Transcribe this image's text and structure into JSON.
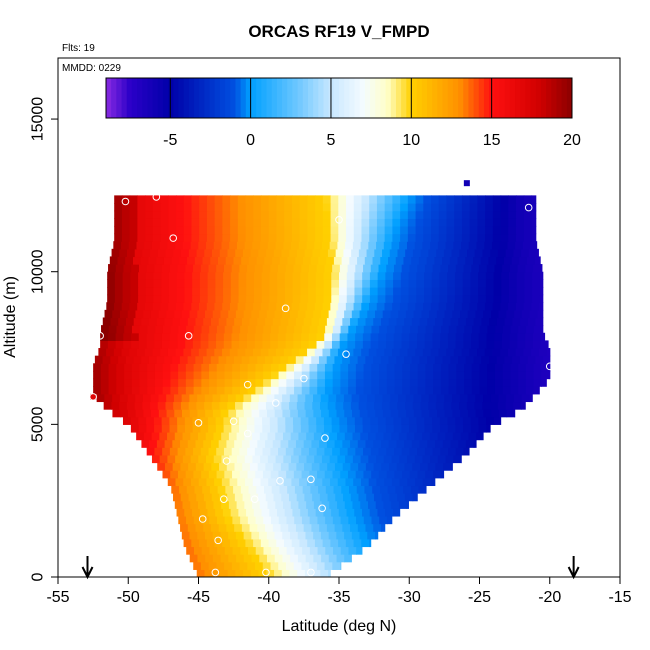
{
  "chart_data": {
    "type": "heatmap",
    "title": "ORCAS RF19 V_FMPD",
    "annotations": [
      "Flts: 19",
      "MMDD: 0229"
    ],
    "xlabel": "Latitude (deg N)",
    "ylabel": "Altitude (m)",
    "xlim": [
      -55,
      -15
    ],
    "ylim": [
      0,
      17000
    ],
    "x_ticks": [
      -55,
      -50,
      -45,
      -40,
      -35,
      -30,
      -25,
      -20,
      -15
    ],
    "x_tick_labels": [
      "-55",
      "-50",
      "-45",
      "-40",
      "-35",
      "-30",
      "-25",
      "-20",
      "-15"
    ],
    "y_ticks": [
      0,
      5000,
      10000,
      15000
    ],
    "y_tick_labels": [
      "0",
      "5000",
      "10000",
      "15000"
    ],
    "colorbar": {
      "range": [
        -9,
        20
      ],
      "ticks": [
        -5,
        0,
        5,
        10,
        15,
        20
      ],
      "tick_labels": [
        "-5",
        "0",
        "5",
        "10",
        "15",
        "20"
      ],
      "stops": [
        {
          "v": -9,
          "c": "#8a2be2"
        },
        {
          "v": -7.5,
          "c": "#2b00c8"
        },
        {
          "v": -5,
          "c": "#0000a8"
        },
        {
          "v": -1,
          "c": "#0050e0"
        },
        {
          "v": 0,
          "c": "#00a0ff"
        },
        {
          "v": 3,
          "c": "#70c8ff"
        },
        {
          "v": 5,
          "c": "#c8e8ff"
        },
        {
          "v": 7,
          "c": "#f4fbff"
        },
        {
          "v": 8.5,
          "c": "#ffffc8"
        },
        {
          "v": 10,
          "c": "#ffd000"
        },
        {
          "v": 13,
          "c": "#ff9000"
        },
        {
          "v": 15,
          "c": "#ff1010"
        },
        {
          "v": 18,
          "c": "#d00000"
        },
        {
          "v": 20,
          "c": "#8b0000"
        }
      ]
    },
    "profile": {
      "altitudes": [
        0,
        1000,
        2000,
        3000,
        4000,
        5000,
        5500,
        6000,
        6500,
        7000,
        7500,
        8000,
        9000,
        10000,
        11000,
        12000,
        12500
      ],
      "lat_south": [
        -45,
        -46,
        -46.5,
        -47,
        -48.5,
        -50,
        -51.5,
        -52.5,
        -52.5,
        -52.5,
        -52,
        -52,
        -51.5,
        -51.5,
        -51,
        -51,
        -51
      ],
      "lat_north": [
        -36,
        -33,
        -31,
        -28.5,
        -26,
        -24,
        -22,
        -21,
        -20,
        -20,
        -20,
        -20.5,
        -20.5,
        -20.5,
        -21,
        -21,
        -21
      ]
    },
    "fields": {
      "zero_line": {
        "altitudes": [
          0,
          2000,
          4000,
          6000,
          7500,
          9000,
          10000,
          11500,
          12500
        ],
        "lat": [
          -32,
          -34,
          -35,
          -36,
          -35,
          -33,
          -32,
          -31,
          -30
        ]
      },
      "ten_line": {
        "altitudes": [
          0,
          2000,
          4000,
          5500,
          6500,
          7500,
          8000,
          10000,
          12500
        ],
        "lat": [
          -40,
          -43,
          -44,
          -43,
          -40,
          -37,
          -36,
          -35.5,
          -36
        ]
      },
      "upper_cold_lat": -22,
      "upper_warm_lat": -50
    },
    "sample_points": [
      {
        "lat": -50.2,
        "alt": 12300
      },
      {
        "lat": -48,
        "alt": 12450
      },
      {
        "lat": -46.8,
        "alt": 11100
      },
      {
        "lat": -35,
        "alt": 11700
      },
      {
        "lat": -21.5,
        "alt": 12100
      },
      {
        "lat": -38.8,
        "alt": 8800
      },
      {
        "lat": -45.7,
        "alt": 7900
      },
      {
        "lat": -52,
        "alt": 7900
      },
      {
        "lat": -34.5,
        "alt": 7300
      },
      {
        "lat": -20,
        "alt": 6900
      },
      {
        "lat": -37.5,
        "alt": 6500
      },
      {
        "lat": -41.5,
        "alt": 6300
      },
      {
        "lat": -39.5,
        "alt": 5700
      },
      {
        "lat": -42.5,
        "alt": 5100
      },
      {
        "lat": -45,
        "alt": 5050
      },
      {
        "lat": -41.5,
        "alt": 4700
      },
      {
        "lat": -36,
        "alt": 4550
      },
      {
        "lat": -43,
        "alt": 3800
      },
      {
        "lat": -37,
        "alt": 3200
      },
      {
        "lat": -39.2,
        "alt": 3150
      },
      {
        "lat": -43.2,
        "alt": 2550
      },
      {
        "lat": -41,
        "alt": 2550
      },
      {
        "lat": -36.2,
        "alt": 2250
      },
      {
        "lat": -44.7,
        "alt": 1900
      },
      {
        "lat": -43.6,
        "alt": 1200
      },
      {
        "lat": -43.8,
        "alt": 150
      },
      {
        "lat": -40.2,
        "alt": 150
      },
      {
        "lat": -37,
        "alt": 150
      },
      {
        "lat": -52.5,
        "alt": 5900
      }
    ],
    "highlights": [
      {
        "lat": -52.5,
        "alt": 5900,
        "v": 17
      },
      {
        "lat": -25.9,
        "alt": 12900,
        "v": -6
      }
    ],
    "arrows": [
      {
        "lat": -52.9,
        "label": ""
      },
      {
        "lat": -18.3,
        "label": ""
      }
    ],
    "grid": false
  }
}
